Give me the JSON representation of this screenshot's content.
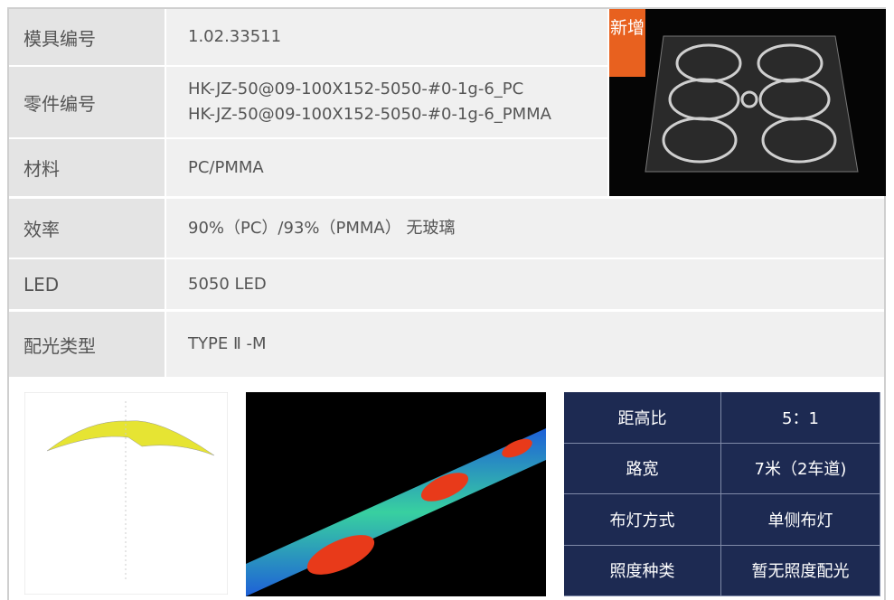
{
  "spec_table": {
    "rows": [
      {
        "label": "模具编号",
        "lines": [
          "1.02.33511"
        ]
      },
      {
        "label": "零件编号",
        "lines": [
          "HK-JZ-50@09-100X152-5050-#0-1g-6_PC",
          "HK-JZ-50@09-100X152-5050-#0-1g-6_PMMA"
        ]
      },
      {
        "label": "材料",
        "lines": [
          "PC/PMMA"
        ]
      },
      {
        "label": "效率",
        "lines": [
          "90%（PC）/93%（PMMA） 无玻璃"
        ]
      },
      {
        "label": "LED",
        "lines": [
          "5050 LED"
        ]
      },
      {
        "label": "配光类型",
        "lines": [
          "TYPE Ⅱ -M"
        ]
      }
    ]
  },
  "badge": "新增",
  "lighting_table": {
    "rows": [
      [
        "距高比",
        "5：1"
      ],
      [
        "路宽",
        "7米（2车道)"
      ],
      [
        "布灯方式",
        "单侧布灯"
      ],
      [
        "照度种类",
        "暂无照度配光"
      ]
    ]
  }
}
